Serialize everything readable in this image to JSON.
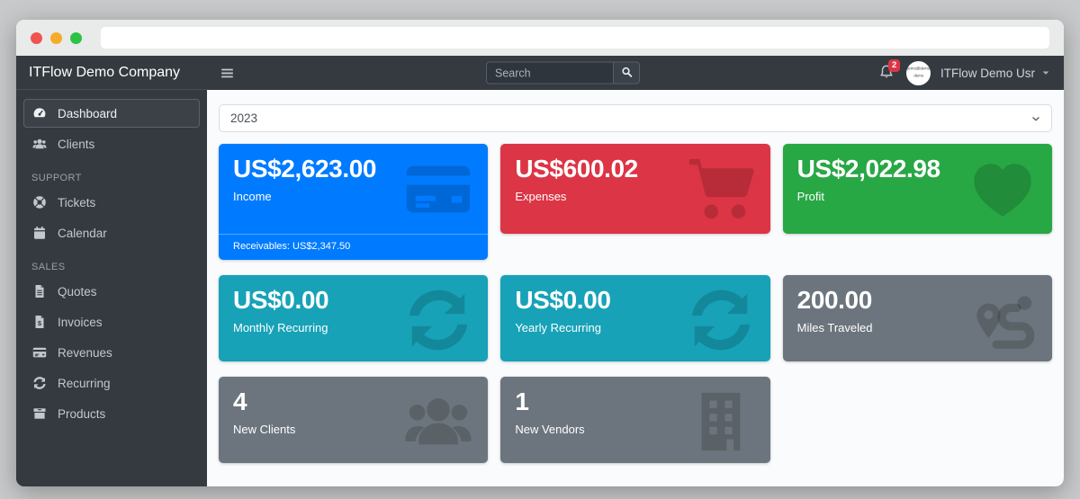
{
  "browser": {
    "url_value": ""
  },
  "brand": {
    "title": "ITFlow Demo Company"
  },
  "navbar": {
    "search": {
      "placeholder": "Search",
      "icon": "search-icon"
    },
    "notifications": {
      "icon": "bell-icon",
      "count": "2"
    },
    "user": {
      "name": "ITFlow Demo Usr",
      "avatar_text_top": "demo@demo",
      "avatar_text_bottom": "demo"
    }
  },
  "sidebar": {
    "sections": [
      {
        "header": "",
        "items": [
          {
            "label": "Dashboard",
            "icon": "tachometer-icon",
            "active": true
          },
          {
            "label": "Clients",
            "icon": "users-icon",
            "active": false
          }
        ]
      },
      {
        "header": "SUPPORT",
        "items": [
          {
            "label": "Tickets",
            "icon": "life-ring-icon",
            "active": false
          },
          {
            "label": "Calendar",
            "icon": "calendar-icon",
            "active": false
          }
        ]
      },
      {
        "header": "SALES",
        "items": [
          {
            "label": "Quotes",
            "icon": "file-lines-icon",
            "active": false
          },
          {
            "label": "Invoices",
            "icon": "file-invoice-dollar-icon",
            "active": false
          },
          {
            "label": "Revenues",
            "icon": "credit-card-icon",
            "active": false
          },
          {
            "label": "Recurring",
            "icon": "sync-icon",
            "active": false
          },
          {
            "label": "Products",
            "icon": "box-icon",
            "active": false
          }
        ]
      }
    ]
  },
  "main": {
    "year_select": {
      "value": "2023"
    },
    "cards": [
      {
        "row": 1,
        "value": "US$2,623.00",
        "label": "Income",
        "icon": "credit-card-icon",
        "color": "#007bff",
        "footer": "Receivables: US$2,347.50"
      },
      {
        "row": 1,
        "value": "US$600.02",
        "label": "Expenses",
        "icon": "cart-icon",
        "color": "#dc3545"
      },
      {
        "row": 1,
        "value": "US$2,022.98",
        "label": "Profit",
        "icon": "heart-icon",
        "color": "#28a745"
      },
      {
        "row": 2,
        "value": "US$0.00",
        "label": "Monthly Recurring",
        "icon": "sync-icon",
        "color": "#17a2b8"
      },
      {
        "row": 2,
        "value": "US$0.00",
        "label": "Yearly Recurring",
        "icon": "sync-icon",
        "color": "#17a2b8"
      },
      {
        "row": 2,
        "value": "200.00",
        "label": "Miles Traveled",
        "icon": "route-icon",
        "color": "#6c757d"
      },
      {
        "row": 3,
        "value": "4",
        "label": "New Clients",
        "icon": "users-icon",
        "color": "#6c757d"
      },
      {
        "row": 3,
        "value": "1",
        "label": "New Vendors",
        "icon": "building-icon",
        "color": "#6c757d"
      }
    ]
  },
  "colors": {
    "navbar_bg": "#343a40",
    "sidebar_bg": "#343a40",
    "sidebar_text": "#c2c7d0",
    "badge_danger": "#dc3545",
    "primary": "#007bff",
    "danger": "#dc3545",
    "success": "#28a745",
    "info": "#17a2b8",
    "secondary": "#6c757d"
  }
}
